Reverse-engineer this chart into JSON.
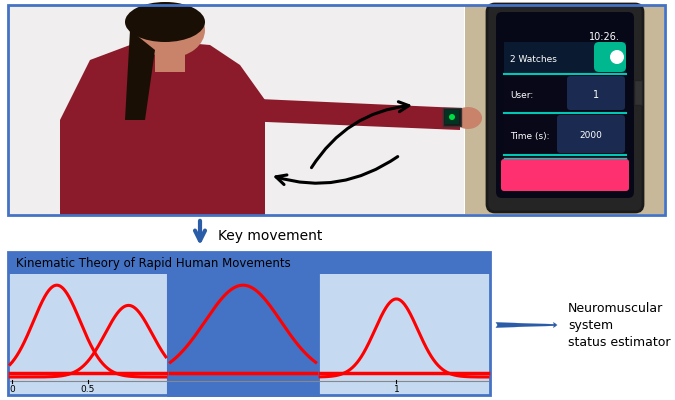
{
  "fig_width": 6.75,
  "fig_height": 4.0,
  "fig_dpi": 100,
  "border_color": "#4472c4",
  "header_bg": "#4472c4",
  "panel_bg": "#c5d9f1",
  "mid_panel_bg": "#4472c4",
  "arrow_color": "#2b5ca8",
  "curve_color": "#ff0000",
  "bg_color": "#ffffff",
  "person_bg": "#f0eeee",
  "watch_bg": "#c8b89a",
  "person_maroon": "#8b1a2a",
  "person_skin": "#c8836a",
  "person_hair": "#1a0f05",
  "watch_dark": "#1a1a1a",
  "watch_screen_bg": "#0a0a1a",
  "watch_teal": "#00c8b4",
  "watch_row_blue": "#1a2a4a",
  "watch_val_blue": "#2a3a6a",
  "watch_pink": "#ff3070",
  "header_text": "Kinematic Theory of Rapid Human Movements",
  "arrow_down_label": "Key movement",
  "right_label_lines": [
    "Neuromuscular",
    "system",
    "status estimator"
  ],
  "tick_labels_p1": [
    "0",
    "0.5"
  ],
  "tick_labels_p2": [],
  "tick_labels_p3": [
    "1"
  ]
}
